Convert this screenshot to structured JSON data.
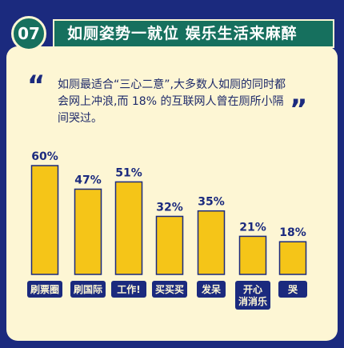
{
  "header": {
    "number": "07",
    "title": "如厕姿势一就位 娱乐生活来麻醉"
  },
  "quote": {
    "open": "“",
    "close": "”",
    "text": "如厕最适合“三心二意”,大多数人如厕的同时都会网上冲浪,而 18% 的互联网人曾在厕所小隔间哭过。"
  },
  "colors": {
    "background": "#1b2a7e",
    "card": "#fdf6d4",
    "accent": "#16705e",
    "bar": "#f5c518",
    "bar_outline": "#1b2a7e"
  },
  "chart_data": {
    "type": "bar",
    "categories": [
      "刷票圈",
      "刷国际",
      "工作!",
      "买买买",
      "发呆",
      "开心消消乐",
      "哭"
    ],
    "category_lines": [
      [
        "刷票圈"
      ],
      [
        "刷国际"
      ],
      [
        "工作!"
      ],
      [
        "买买买"
      ],
      [
        "发呆"
      ],
      [
        "开心",
        "消消乐"
      ],
      [
        "哭"
      ]
    ],
    "values": [
      60,
      47,
      51,
      32,
      35,
      21,
      18
    ],
    "value_labels": [
      "60%",
      "47%",
      "51%",
      "32%",
      "35%",
      "21%",
      "18%"
    ],
    "ylim": [
      0,
      60
    ],
    "grid": false
  }
}
